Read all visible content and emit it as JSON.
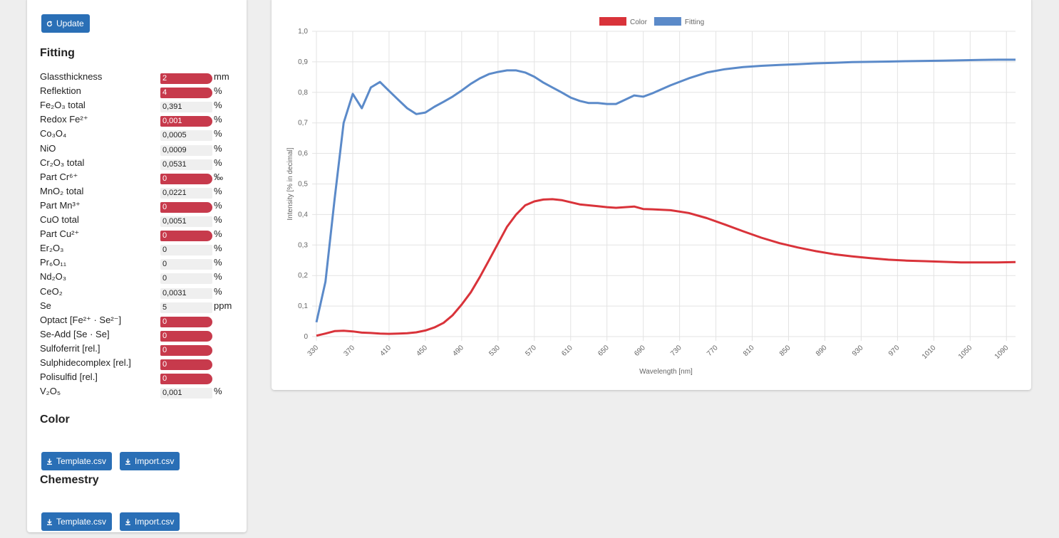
{
  "sidebar": {
    "update_button": "Update",
    "sections": [
      {
        "title": "Fitting",
        "rows": [
          {
            "label": "Glassthickness",
            "value": "2",
            "unit": "mm",
            "highlighted": true
          },
          {
            "label": "Reflektion",
            "value": "4",
            "unit": "%",
            "highlighted": true
          },
          {
            "label": "Fe₂O₃ total",
            "value": "0,391",
            "unit": "%",
            "highlighted": false
          },
          {
            "label": "Redox Fe²⁺",
            "value": "0,001",
            "unit": "%",
            "highlighted": true
          },
          {
            "label": "Co₃O₄",
            "value": "0,0005",
            "unit": "%",
            "highlighted": false
          },
          {
            "label": "NiO",
            "value": "0,0009",
            "unit": "%",
            "highlighted": false
          },
          {
            "label": "Cr₂O₃ total",
            "value": "0,0531",
            "unit": "%",
            "highlighted": false
          },
          {
            "label": "Part Cr⁶⁺",
            "value": "0",
            "unit": "‰",
            "highlighted": true
          },
          {
            "label": "MnO₂ total",
            "value": "0,0221",
            "unit": "%",
            "highlighted": false
          },
          {
            "label": "Part Mn³⁺",
            "value": "0",
            "unit": "%",
            "highlighted": true
          },
          {
            "label": "CuO total",
            "value": "0,0051",
            "unit": "%",
            "highlighted": false
          },
          {
            "label": "Part Cu²⁺",
            "value": "0",
            "unit": "%",
            "highlighted": true
          },
          {
            "label": "Er₂O₃",
            "value": "0",
            "unit": "%",
            "highlighted": false
          },
          {
            "label": "Pr₆O₁₁",
            "value": "0",
            "unit": "%",
            "highlighted": false
          },
          {
            "label": "Nd₂O₃",
            "value": "0",
            "unit": "%",
            "highlighted": false
          },
          {
            "label": "CeO₂",
            "value": "0,0031",
            "unit": "%",
            "highlighted": false
          },
          {
            "label": "Se",
            "value": "5",
            "unit": "ppm",
            "highlighted": false
          },
          {
            "label": "Optact [Fe²⁺ · Se²⁻]",
            "value": "0",
            "highlighted": true
          },
          {
            "label": "Se-Add [Se · Se]",
            "value": "0",
            "highlighted": true
          },
          {
            "label": "Sulfoferrit [rel.]",
            "value": "0",
            "highlighted": true
          },
          {
            "label": "Sulphidecomplex [rel.]",
            "value": "0",
            "highlighted": true
          },
          {
            "label": "Polisulfid [rel.]",
            "value": "0",
            "highlighted": true
          },
          {
            "label": "V₂O₅",
            "value": "0,001",
            "unit": "%",
            "highlighted": false
          }
        ]
      },
      {
        "title": "Color",
        "buttons": [
          "Template.csv",
          "Import.csv"
        ]
      },
      {
        "title": "Chemestry",
        "buttons": [
          "Template.csv",
          "Import.csv"
        ]
      }
    ]
  },
  "chart_data": {
    "type": "line",
    "xlabel": "Wavelength [nm]",
    "ylabel": "Intensity [% in decimal]",
    "grid": true,
    "x": [
      330,
      340,
      350,
      360,
      370,
      380,
      390,
      400,
      410,
      420,
      430,
      440,
      450,
      460,
      470,
      480,
      490,
      500,
      510,
      520,
      530,
      540,
      550,
      560,
      570,
      580,
      590,
      600,
      610,
      620,
      630,
      640,
      650,
      660,
      670,
      680,
      690,
      700,
      720,
      740,
      760,
      780,
      800,
      820,
      840,
      860,
      880,
      900,
      920,
      940,
      960,
      980,
      1000,
      1020,
      1040,
      1060,
      1080,
      1100
    ],
    "xlim": [
      330,
      1100
    ],
    "xticks": [
      330,
      370,
      410,
      450,
      490,
      530,
      570,
      610,
      650,
      690,
      730,
      770,
      810,
      850,
      890,
      930,
      970,
      1010,
      1050,
      1090
    ],
    "ylim": [
      0,
      1
    ],
    "yticks": [
      0,
      {
        "value": 0.1,
        "label": "0,1"
      },
      {
        "value": 0.2,
        "label": "0,2"
      },
      {
        "value": 0.3,
        "label": "0,3"
      },
      {
        "value": 0.4,
        "label": "0,4"
      },
      {
        "value": 0.5,
        "label": "0,5"
      },
      {
        "value": 0.6,
        "label": "0,6"
      },
      {
        "value": 0.7,
        "label": "0,7"
      },
      {
        "value": 0.8,
        "label": "0,8"
      },
      {
        "value": 0.9,
        "label": "0,9"
      },
      {
        "value": 1,
        "label": "1,0"
      }
    ],
    "series": [
      {
        "name": "Color",
        "color": "#d9333a",
        "values": [
          0.003,
          0.01,
          0.018,
          0.019,
          0.017,
          0.013,
          0.012,
          0.01,
          0.009,
          0.01,
          0.011,
          0.014,
          0.02,
          0.03,
          0.045,
          0.07,
          0.105,
          0.145,
          0.195,
          0.25,
          0.305,
          0.36,
          0.4,
          0.43,
          0.443,
          0.449,
          0.45,
          0.447,
          0.44,
          0.433,
          0.43,
          0.427,
          0.424,
          0.422,
          0.424,
          0.426,
          0.418,
          0.417,
          0.414,
          0.405,
          0.388,
          0.367,
          0.345,
          0.324,
          0.306,
          0.292,
          0.28,
          0.27,
          0.263,
          0.257,
          0.252,
          0.249,
          0.247,
          0.245,
          0.243,
          0.243,
          0.243,
          0.244
        ]
      },
      {
        "name": "Fitting",
        "color": "#5b8ac9",
        "values": [
          0.047,
          0.18,
          0.45,
          0.7,
          0.795,
          0.748,
          0.816,
          0.834,
          0.805,
          0.776,
          0.748,
          0.729,
          0.734,
          0.753,
          0.769,
          0.786,
          0.806,
          0.828,
          0.846,
          0.86,
          0.867,
          0.872,
          0.872,
          0.865,
          0.851,
          0.832,
          0.816,
          0.8,
          0.783,
          0.772,
          0.765,
          0.765,
          0.762,
          0.762,
          0.776,
          0.79,
          0.786,
          0.797,
          0.823,
          0.846,
          0.865,
          0.876,
          0.883,
          0.887,
          0.89,
          0.892,
          0.895,
          0.897,
          0.899,
          0.9,
          0.901,
          0.902,
          0.903,
          0.904,
          0.905,
          0.906,
          0.907,
          0.907
        ]
      }
    ]
  }
}
